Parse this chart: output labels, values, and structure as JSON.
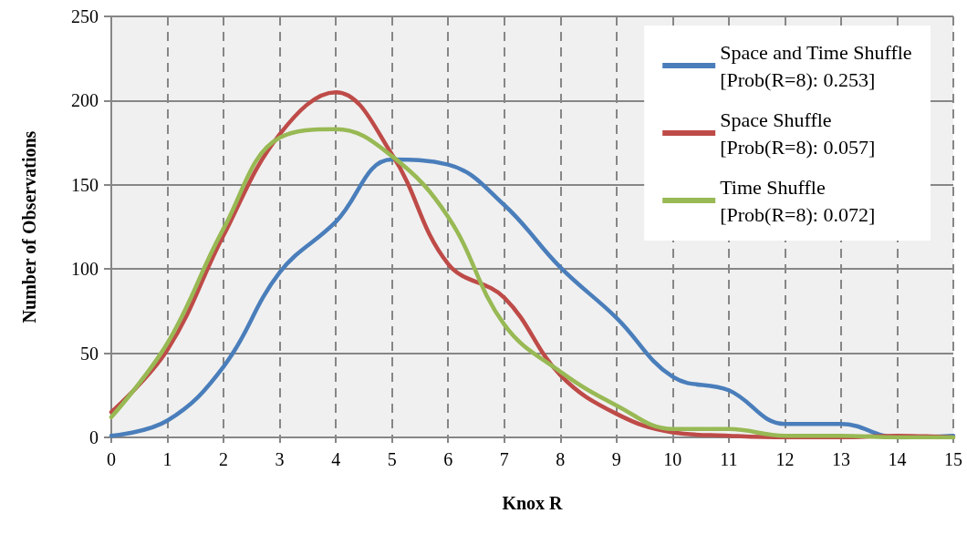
{
  "chart_data": {
    "type": "line",
    "xlabel": "Knox R",
    "ylabel": "Number of Observations",
    "x": [
      0,
      1,
      2,
      3,
      4,
      5,
      6,
      7,
      8,
      9,
      10,
      11,
      12,
      13,
      14,
      15
    ],
    "series": [
      {
        "name": "Space and Time Shuffle\n[Prob(R=8): 0.253]",
        "color": "#4a7ebb",
        "values": [
          1,
          10,
          42,
          98,
          128,
          165,
          162,
          138,
          101,
          71,
          36,
          28,
          8,
          8,
          0,
          1
        ]
      },
      {
        "name": "Space Shuffle\n[Prob(R=8): 0.057]",
        "color": "#be4b48",
        "values": [
          15,
          52,
          120,
          180,
          205,
          168,
          103,
          83,
          37,
          14,
          3,
          1,
          0,
          0,
          1,
          0
        ]
      },
      {
        "name": "Time Shuffle\n[Prob(R=8): 0.072]",
        "color": "#98b954",
        "values": [
          12,
          56,
          124,
          178,
          183,
          167,
          131,
          67,
          39,
          19,
          5,
          5,
          1,
          1,
          0,
          0
        ]
      }
    ],
    "xlim": [
      0,
      15
    ],
    "xticks": [
      0,
      1,
      2,
      3,
      4,
      5,
      6,
      7,
      8,
      9,
      10,
      11,
      12,
      13,
      14,
      15
    ],
    "ylim": [
      0,
      250
    ],
    "yticks": [
      0,
      50,
      100,
      150,
      200,
      250
    ],
    "grid": true,
    "legend": "top right",
    "marker": "none",
    "line_style": "solid"
  }
}
